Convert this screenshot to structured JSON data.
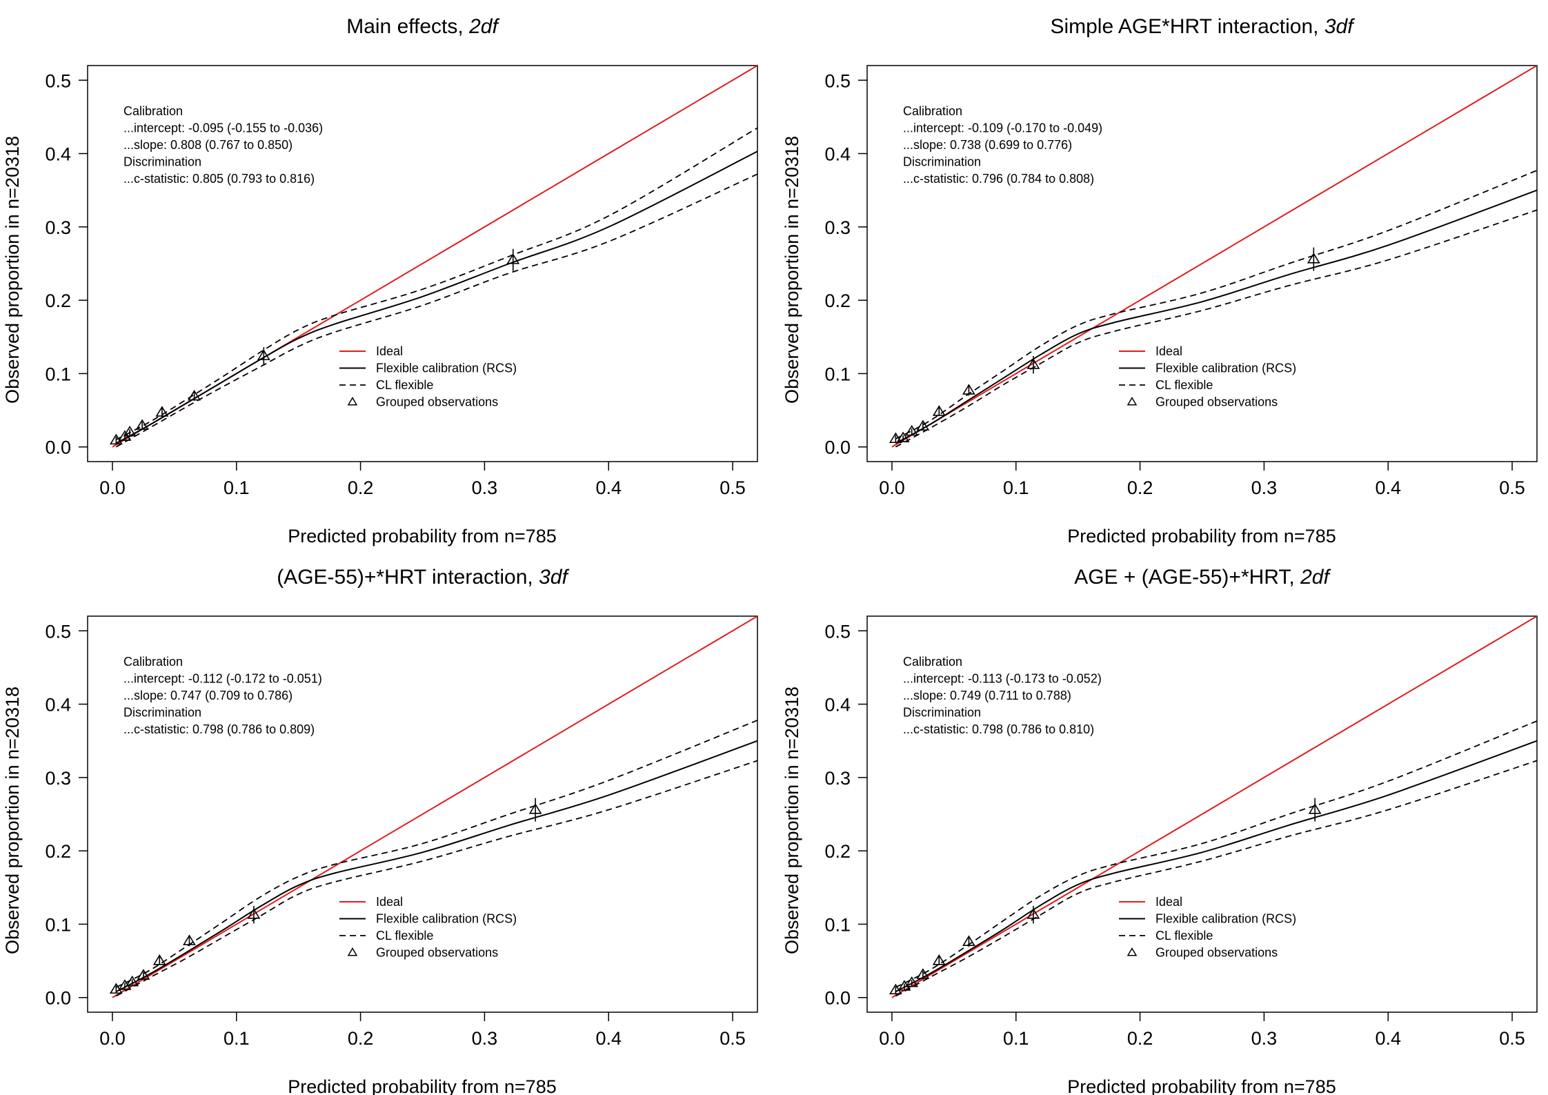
{
  "ideal_color": "#e31a1c",
  "curve_color": "#000000",
  "panels": [
    {
      "title_main": "Main effects, ",
      "title_df": "2df",
      "stats": [
        "Calibration",
        "...intercept: -0.095 (-0.155 to -0.036)",
        "...slope: 0.808 (0.767 to 0.850)",
        "Discrimination",
        "...c-statistic: 0.805 (0.793 to 0.816)"
      ]
    },
    {
      "title_main": "Simple AGE*HRT interaction, ",
      "title_df": "3df",
      "stats": [
        "Calibration",
        "...intercept: -0.109 (-0.170 to -0.049)",
        "...slope: 0.738 (0.699 to 0.776)",
        "Discrimination",
        "...c-statistic: 0.796 (0.784 to 0.808)"
      ]
    },
    {
      "title_main": "(AGE-55)+*HRT interaction, ",
      "title_df": "3df",
      "stats": [
        "Calibration",
        "...intercept: -0.112 (-0.172 to -0.051)",
        "...slope: 0.747 (0.709 to 0.786)",
        "Discrimination",
        "...c-statistic: 0.798 (0.786 to 0.809)"
      ]
    },
    {
      "title_main": "AGE + (AGE-55)+*HRT, ",
      "title_df": "2df",
      "stats": [
        "Calibration",
        "...intercept: -0.113 (-0.173 to -0.052)",
        "...slope: 0.749 (0.711 to 0.788)",
        "Discrimination",
        "...c-statistic: 0.798 (0.786 to 0.810)"
      ]
    }
  ],
  "chart_data": [
    {
      "type": "line",
      "title": "Main effects, 2df",
      "xlabel": "Predicted probability from n=785",
      "ylabel": "Observed proportion in n=20318",
      "xlim": [
        -0.02,
        0.52
      ],
      "ylim": [
        -0.02,
        0.52
      ],
      "xticks": [
        "0.0",
        "0.1",
        "0.2",
        "0.3",
        "0.4",
        "0.5"
      ],
      "yticks": [
        "0.0",
        "0.1",
        "0.2",
        "0.3",
        "0.4",
        "0.5"
      ],
      "legend": [
        "Ideal",
        "Flexible calibration (RCS)",
        "CL flexible",
        "Grouped observations"
      ],
      "series": [
        {
          "name": "Ideal",
          "x": [
            0,
            0.52
          ],
          "y": [
            0,
            0.52
          ]
        },
        {
          "name": "Flexible calibration (RCS)",
          "x": [
            0.003,
            0.03,
            0.06,
            0.09,
            0.12,
            0.15,
            0.18,
            0.25,
            0.32,
            0.4,
            0.52
          ],
          "y": [
            0.005,
            0.03,
            0.06,
            0.09,
            0.12,
            0.148,
            0.168,
            0.205,
            0.25,
            0.3,
            0.403
          ]
        },
        {
          "name": "CL flexible upper",
          "x": [
            0.003,
            0.03,
            0.06,
            0.09,
            0.12,
            0.15,
            0.18,
            0.25,
            0.32,
            0.4,
            0.52
          ],
          "y": [
            0.01,
            0.034,
            0.065,
            0.097,
            0.13,
            0.16,
            0.18,
            0.215,
            0.26,
            0.315,
            0.435
          ]
        },
        {
          "name": "CL flexible lower",
          "x": [
            0.003,
            0.03,
            0.06,
            0.09,
            0.12,
            0.15,
            0.18,
            0.25,
            0.32,
            0.4,
            0.52
          ],
          "y": [
            0.0,
            0.026,
            0.055,
            0.083,
            0.11,
            0.137,
            0.157,
            0.193,
            0.237,
            0.28,
            0.372
          ]
        }
      ],
      "grouped_observations": [
        {
          "x": 0.003,
          "y": 0.009,
          "lo": 0.004,
          "hi": 0.014
        },
        {
          "x": 0.01,
          "y": 0.014,
          "lo": 0.01,
          "hi": 0.018
        },
        {
          "x": 0.014,
          "y": 0.02,
          "lo": 0.016,
          "hi": 0.024
        },
        {
          "x": 0.024,
          "y": 0.029,
          "lo": 0.024,
          "hi": 0.034
        },
        {
          "x": 0.04,
          "y": 0.047,
          "lo": 0.041,
          "hi": 0.053
        },
        {
          "x": 0.066,
          "y": 0.069,
          "lo": 0.063,
          "hi": 0.075
        },
        {
          "x": 0.122,
          "y": 0.124,
          "lo": 0.112,
          "hi": 0.136
        },
        {
          "x": 0.323,
          "y": 0.255,
          "lo": 0.24,
          "hi": 0.27
        }
      ]
    },
    {
      "type": "line",
      "title": "Simple AGE*HRT interaction, 3df",
      "xlabel": "Predicted probability from n=785",
      "ylabel": "Observed proportion in n=20318",
      "xlim": [
        -0.02,
        0.52
      ],
      "ylim": [
        -0.02,
        0.52
      ],
      "xticks": [
        "0.0",
        "0.1",
        "0.2",
        "0.3",
        "0.4",
        "0.5"
      ],
      "yticks": [
        "0.0",
        "0.1",
        "0.2",
        "0.3",
        "0.4",
        "0.5"
      ],
      "legend": [
        "Ideal",
        "Flexible calibration (RCS)",
        "CL flexible",
        "Grouped observations"
      ],
      "series": [
        {
          "name": "Ideal",
          "x": [
            0,
            0.52
          ],
          "y": [
            0,
            0.52
          ]
        },
        {
          "name": "Flexible calibration (RCS)",
          "x": [
            0.003,
            0.03,
            0.06,
            0.09,
            0.12,
            0.15,
            0.18,
            0.25,
            0.32,
            0.4,
            0.52
          ],
          "y": [
            0.005,
            0.03,
            0.062,
            0.094,
            0.126,
            0.154,
            0.17,
            0.198,
            0.235,
            0.275,
            0.35
          ]
        },
        {
          "name": "CL flexible upper",
          "x": [
            0.003,
            0.03,
            0.06,
            0.09,
            0.12,
            0.15,
            0.18,
            0.25,
            0.32,
            0.4,
            0.52
          ],
          "y": [
            0.011,
            0.035,
            0.07,
            0.104,
            0.138,
            0.166,
            0.182,
            0.21,
            0.25,
            0.295,
            0.377
          ]
        },
        {
          "name": "CL flexible lower",
          "x": [
            0.003,
            0.03,
            0.06,
            0.09,
            0.12,
            0.15,
            0.18,
            0.25,
            0.32,
            0.4,
            0.52
          ],
          "y": [
            0.0,
            0.025,
            0.054,
            0.085,
            0.114,
            0.142,
            0.158,
            0.186,
            0.22,
            0.255,
            0.323
          ]
        }
      ],
      "grouped_observations": [
        {
          "x": 0.003,
          "y": 0.011,
          "lo": 0.006,
          "hi": 0.016
        },
        {
          "x": 0.009,
          "y": 0.012,
          "lo": 0.008,
          "hi": 0.016
        },
        {
          "x": 0.016,
          "y": 0.021,
          "lo": 0.017,
          "hi": 0.025
        },
        {
          "x": 0.025,
          "y": 0.028,
          "lo": 0.023,
          "hi": 0.033
        },
        {
          "x": 0.038,
          "y": 0.048,
          "lo": 0.042,
          "hi": 0.054
        },
        {
          "x": 0.062,
          "y": 0.077,
          "lo": 0.07,
          "hi": 0.084
        },
        {
          "x": 0.114,
          "y": 0.112,
          "lo": 0.1,
          "hi": 0.124
        },
        {
          "x": 0.34,
          "y": 0.256,
          "lo": 0.24,
          "hi": 0.272
        }
      ]
    },
    {
      "type": "line",
      "title": "(AGE-55)+*HRT interaction, 3df",
      "xlabel": "Predicted probability from n=785",
      "ylabel": "Observed proportion in n=20318",
      "xlim": [
        -0.02,
        0.52
      ],
      "ylim": [
        -0.02,
        0.52
      ],
      "xticks": [
        "0.0",
        "0.1",
        "0.2",
        "0.3",
        "0.4",
        "0.5"
      ],
      "yticks": [
        "0.0",
        "0.1",
        "0.2",
        "0.3",
        "0.4",
        "0.5"
      ],
      "legend": [
        "Ideal",
        "Flexible calibration (RCS)",
        "CL flexible",
        "Grouped observations"
      ],
      "series": [
        {
          "name": "Ideal",
          "x": [
            0,
            0.52
          ],
          "y": [
            0,
            0.52
          ]
        },
        {
          "name": "Flexible calibration (RCS)",
          "x": [
            0.003,
            0.03,
            0.06,
            0.09,
            0.12,
            0.15,
            0.18,
            0.25,
            0.32,
            0.4,
            0.52
          ],
          "y": [
            0.008,
            0.032,
            0.062,
            0.093,
            0.125,
            0.153,
            0.17,
            0.198,
            0.235,
            0.276,
            0.35
          ]
        },
        {
          "name": "CL flexible upper",
          "x": [
            0.003,
            0.03,
            0.06,
            0.09,
            0.12,
            0.15,
            0.18,
            0.25,
            0.32,
            0.4,
            0.52
          ],
          "y": [
            0.014,
            0.037,
            0.07,
            0.104,
            0.138,
            0.165,
            0.182,
            0.21,
            0.25,
            0.296,
            0.378
          ]
        },
        {
          "name": "CL flexible lower",
          "x": [
            0.003,
            0.03,
            0.06,
            0.09,
            0.12,
            0.15,
            0.18,
            0.25,
            0.32,
            0.4,
            0.52
          ],
          "y": [
            0.002,
            0.027,
            0.054,
            0.083,
            0.112,
            0.141,
            0.158,
            0.186,
            0.22,
            0.256,
            0.323
          ]
        }
      ],
      "grouped_observations": [
        {
          "x": 0.003,
          "y": 0.011,
          "lo": 0.006,
          "hi": 0.016
        },
        {
          "x": 0.01,
          "y": 0.016,
          "lo": 0.012,
          "hi": 0.02
        },
        {
          "x": 0.016,
          "y": 0.021,
          "lo": 0.017,
          "hi": 0.025
        },
        {
          "x": 0.025,
          "y": 0.03,
          "lo": 0.025,
          "hi": 0.035
        },
        {
          "x": 0.038,
          "y": 0.05,
          "lo": 0.044,
          "hi": 0.056
        },
        {
          "x": 0.062,
          "y": 0.077,
          "lo": 0.07,
          "hi": 0.084
        },
        {
          "x": 0.114,
          "y": 0.113,
          "lo": 0.101,
          "hi": 0.125
        },
        {
          "x": 0.341,
          "y": 0.256,
          "lo": 0.24,
          "hi": 0.272
        }
      ]
    },
    {
      "type": "line",
      "title": "AGE + (AGE-55)+*HRT, 2df",
      "xlabel": "Predicted probability from n=785",
      "ylabel": "Observed proportion in n=20318",
      "xlim": [
        -0.02,
        0.52
      ],
      "ylim": [
        -0.02,
        0.52
      ],
      "xticks": [
        "0.0",
        "0.1",
        "0.2",
        "0.3",
        "0.4",
        "0.5"
      ],
      "yticks": [
        "0.0",
        "0.1",
        "0.2",
        "0.3",
        "0.4",
        "0.5"
      ],
      "legend": [
        "Ideal",
        "Flexible calibration (RCS)",
        "CL flexible",
        "Grouped observations"
      ],
      "series": [
        {
          "name": "Ideal",
          "x": [
            0,
            0.52
          ],
          "y": [
            0,
            0.52
          ]
        },
        {
          "name": "Flexible calibration (RCS)",
          "x": [
            0.003,
            0.03,
            0.06,
            0.09,
            0.12,
            0.15,
            0.18,
            0.25,
            0.32,
            0.4,
            0.52
          ],
          "y": [
            0.008,
            0.032,
            0.062,
            0.093,
            0.126,
            0.154,
            0.17,
            0.198,
            0.235,
            0.276,
            0.35
          ]
        },
        {
          "name": "CL flexible upper",
          "x": [
            0.003,
            0.03,
            0.06,
            0.09,
            0.12,
            0.15,
            0.18,
            0.25,
            0.32,
            0.4,
            0.52
          ],
          "y": [
            0.014,
            0.037,
            0.07,
            0.105,
            0.139,
            0.166,
            0.182,
            0.21,
            0.25,
            0.295,
            0.377
          ]
        },
        {
          "name": "CL flexible lower",
          "x": [
            0.003,
            0.03,
            0.06,
            0.09,
            0.12,
            0.15,
            0.18,
            0.25,
            0.32,
            0.4,
            0.52
          ],
          "y": [
            0.002,
            0.027,
            0.054,
            0.083,
            0.113,
            0.142,
            0.158,
            0.186,
            0.22,
            0.256,
            0.323
          ]
        }
      ],
      "grouped_observations": [
        {
          "x": 0.003,
          "y": 0.01,
          "lo": 0.005,
          "hi": 0.015
        },
        {
          "x": 0.01,
          "y": 0.015,
          "lo": 0.011,
          "hi": 0.019
        },
        {
          "x": 0.016,
          "y": 0.02,
          "lo": 0.016,
          "hi": 0.024
        },
        {
          "x": 0.025,
          "y": 0.031,
          "lo": 0.026,
          "hi": 0.036
        },
        {
          "x": 0.038,
          "y": 0.05,
          "lo": 0.044,
          "hi": 0.056
        },
        {
          "x": 0.062,
          "y": 0.076,
          "lo": 0.069,
          "hi": 0.083
        },
        {
          "x": 0.114,
          "y": 0.113,
          "lo": 0.101,
          "hi": 0.125
        },
        {
          "x": 0.341,
          "y": 0.256,
          "lo": 0.24,
          "hi": 0.272
        }
      ]
    }
  ]
}
